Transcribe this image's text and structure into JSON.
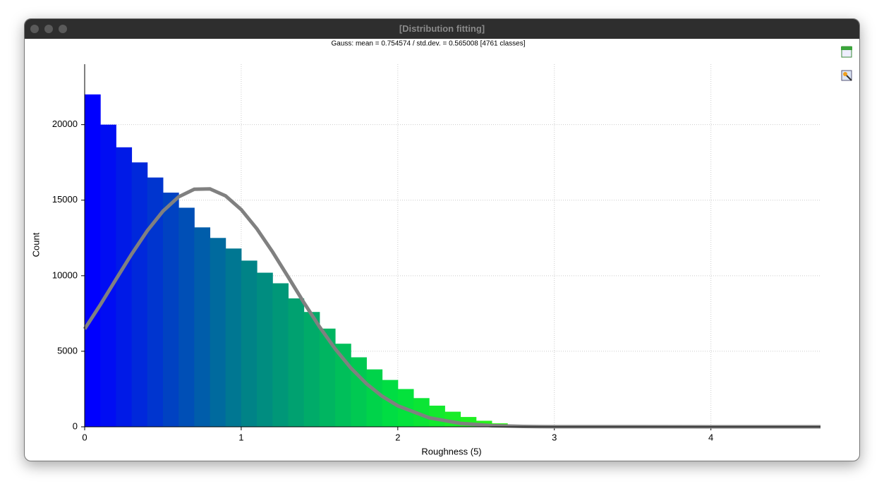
{
  "window": {
    "title": "[Distribution fitting]"
  },
  "chart_data": {
    "type": "histogram",
    "title": "Gauss: mean = 0.754574 / std.dev. = 0.565008 [4761 classes]",
    "x_label": "Roughness (5)",
    "y_label": "Count",
    "bins": [
      0,
      0.1,
      0.2,
      0.3,
      0.4,
      0.5,
      0.6,
      0.7,
      0.8,
      0.9,
      1.0,
      1.1,
      1.2,
      1.3,
      1.4,
      1.5,
      1.6,
      1.7,
      1.8,
      1.9,
      2.0,
      2.1,
      2.2,
      2.3,
      2.4,
      2.5,
      2.6,
      2.7,
      2.8,
      2.9,
      3.0
    ],
    "values": [
      22000,
      20000,
      18500,
      17500,
      16500,
      15500,
      14500,
      13200,
      12500,
      11800,
      11000,
      10200,
      9500,
      8500,
      7600,
      6500,
      5500,
      4600,
      3800,
      3100,
      2500,
      1900,
      1400,
      1000,
      650,
      400,
      230,
      120,
      50,
      20
    ],
    "color_scale": [
      "#0000ff",
      "#00808a",
      "#00e040",
      "#40ff00"
    ],
    "fit": {
      "name": "Gauss",
      "color": "#808080",
      "x": [
        0,
        0.1,
        0.2,
        0.3,
        0.4,
        0.5,
        0.6,
        0.7,
        0.8,
        0.9,
        1.0,
        1.1,
        1.2,
        1.3,
        1.4,
        1.5,
        1.6,
        1.7,
        1.8,
        1.9,
        2.0,
        2.2,
        2.4,
        2.6,
        2.8,
        3.0,
        4.7
      ],
      "values": [
        6476,
        8075,
        9760,
        11431,
        12977,
        14275,
        15220,
        15726,
        15749,
        15285,
        14378,
        13106,
        11580,
        9916,
        8229,
        6619,
        5159,
        3896,
        2853,
        2024,
        1392,
        599,
        228,
        76,
        22,
        5,
        0
      ]
    },
    "xlim": [
      0,
      4.7
    ],
    "ylim": [
      0,
      24000
    ],
    "xticks": [
      0,
      1,
      2,
      3,
      4
    ],
    "yticks": [
      0,
      5000,
      10000,
      15000,
      20000
    ],
    "grid": true
  }
}
